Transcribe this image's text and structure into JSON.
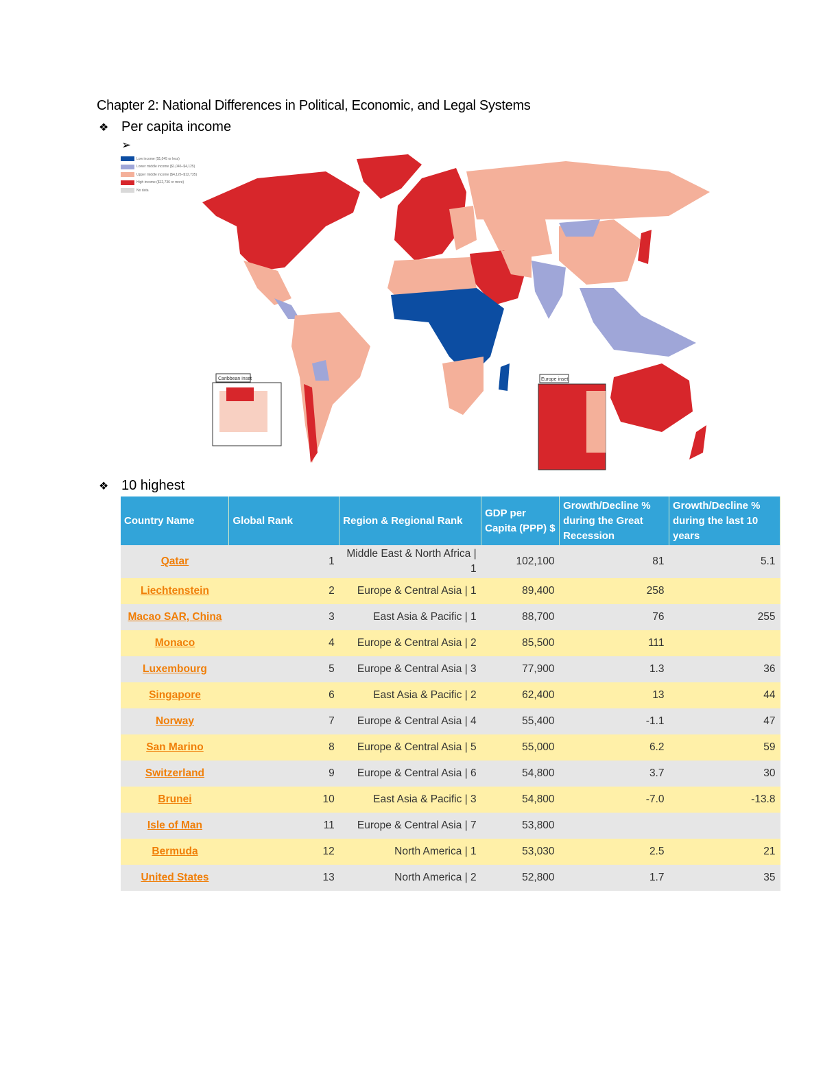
{
  "title": "Chapter 2: National Differences in Political, Economic, and Legal Systems",
  "bullets": {
    "per_capita": "Per capita income",
    "highest": "10 highest"
  },
  "map": {
    "legend": [
      {
        "label": "Low income ($1,045 or less)",
        "color": "#0c4da2"
      },
      {
        "label": "Lower middle income ($1,046–$4,125)",
        "color": "#9fa6d8"
      },
      {
        "label": "Upper middle income ($4,126–$12,735)",
        "color": "#f4b09a"
      },
      {
        "label": "High income ($12,736 or more)",
        "color": "#d7262b"
      },
      {
        "label": "No data",
        "color": "#d9d9d9"
      }
    ],
    "insets": [
      "Caribbean inset",
      "Europe inset"
    ]
  },
  "table": {
    "headers": [
      "Country Name",
      "Global Rank",
      "Region & Regional Rank",
      "GDP per Capita (PPP) $",
      "Growth/Decline % during the Great Recession",
      "Growth/Decline % during the last 10 years"
    ],
    "rows": [
      [
        "Qatar",
        "1",
        "Middle East & North Africa | 1",
        "102,100",
        "81",
        "5.1"
      ],
      [
        "Liechtenstein",
        "2",
        "Europe & Central Asia | 1",
        "89,400",
        "258",
        ""
      ],
      [
        "Macao SAR, China",
        "3",
        "East Asia & Pacific | 1",
        "88,700",
        "76",
        "255"
      ],
      [
        "Monaco",
        "4",
        "Europe & Central Asia | 2",
        "85,500",
        "111",
        ""
      ],
      [
        "Luxembourg",
        "5",
        "Europe & Central Asia | 3",
        "77,900",
        "1.3",
        "36"
      ],
      [
        "Singapore",
        "6",
        "East Asia & Pacific | 2",
        "62,400",
        "13",
        "44"
      ],
      [
        "Norway",
        "7",
        "Europe & Central Asia | 4",
        "55,400",
        "-1.1",
        "47"
      ],
      [
        "San Marino",
        "8",
        "Europe & Central Asia | 5",
        "55,000",
        "6.2",
        "59"
      ],
      [
        "Switzerland",
        "9",
        "Europe & Central Asia | 6",
        "54,800",
        "3.7",
        "30"
      ],
      [
        "Brunei",
        "10",
        "East Asia & Pacific | 3",
        "54,800",
        "-7.0",
        "-13.8"
      ],
      [
        "Isle of Man",
        "11",
        "Europe & Central Asia | 7",
        "53,800",
        "",
        ""
      ],
      [
        "Bermuda",
        "12",
        "North America | 1",
        "53,030",
        "2.5",
        "21"
      ],
      [
        "United States",
        "13",
        "North America | 2",
        "52,800",
        "1.7",
        "35"
      ]
    ]
  }
}
